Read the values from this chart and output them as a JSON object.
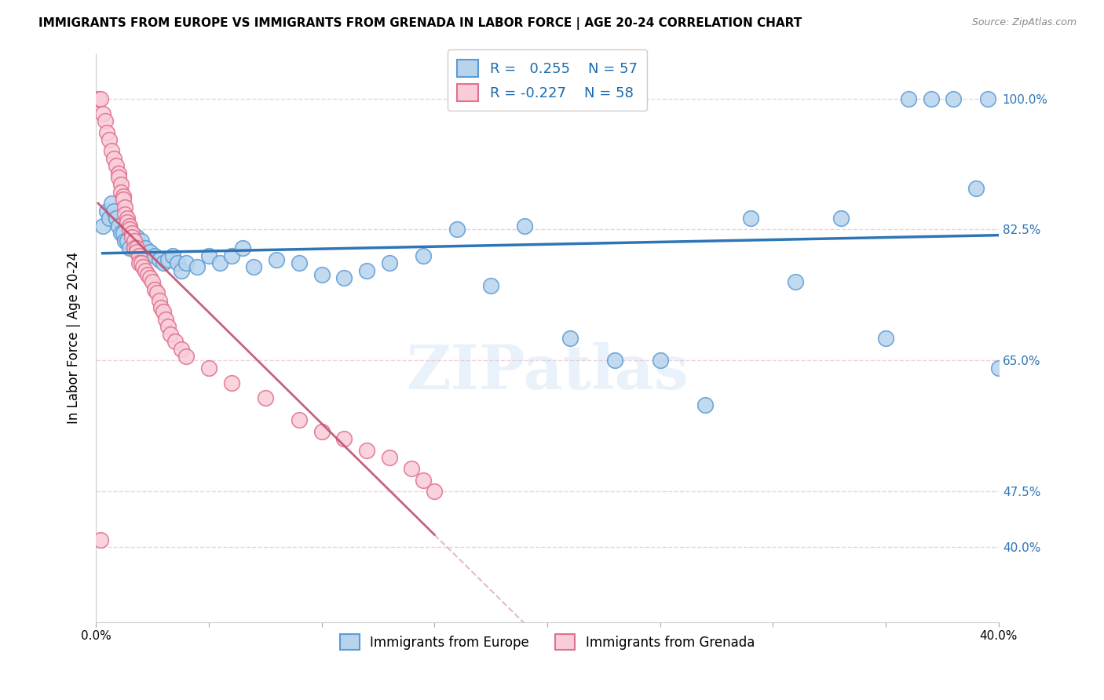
{
  "title": "IMMIGRANTS FROM EUROPE VS IMMIGRANTS FROM GRENADA IN LABOR FORCE | AGE 20-24 CORRELATION CHART",
  "source": "Source: ZipAtlas.com",
  "ylabel": "In Labor Force | Age 20-24",
  "xmin": 0.0,
  "xmax": 0.4,
  "ymin": 0.3,
  "ymax": 1.06,
  "blue_R": "0.255",
  "blue_N": "57",
  "pink_R": "-0.227",
  "pink_N": "58",
  "blue_color": "#b8d4ed",
  "blue_edge": "#5b9bd5",
  "pink_color": "#f9cdd8",
  "pink_edge": "#e07090",
  "blue_line_color": "#2e75b6",
  "pink_line_color": "#c05070",
  "watermark": "ZIPatlas",
  "blue_scatter_x": [
    0.003,
    0.005,
    0.006,
    0.007,
    0.008,
    0.009,
    0.01,
    0.011,
    0.012,
    0.013,
    0.014,
    0.015,
    0.016,
    0.017,
    0.018,
    0.019,
    0.02,
    0.022,
    0.024,
    0.026,
    0.028,
    0.03,
    0.032,
    0.034,
    0.036,
    0.038,
    0.04,
    0.045,
    0.05,
    0.055,
    0.06,
    0.065,
    0.07,
    0.08,
    0.09,
    0.1,
    0.11,
    0.12,
    0.13,
    0.145,
    0.16,
    0.175,
    0.19,
    0.21,
    0.23,
    0.25,
    0.27,
    0.29,
    0.31,
    0.33,
    0.35,
    0.36,
    0.37,
    0.38,
    0.39,
    0.395,
    0.4
  ],
  "blue_scatter_y": [
    0.83,
    0.85,
    0.84,
    0.86,
    0.85,
    0.84,
    0.83,
    0.82,
    0.82,
    0.81,
    0.81,
    0.8,
    0.82,
    0.8,
    0.815,
    0.8,
    0.81,
    0.8,
    0.795,
    0.79,
    0.785,
    0.78,
    0.785,
    0.79,
    0.78,
    0.77,
    0.78,
    0.775,
    0.79,
    0.78,
    0.79,
    0.8,
    0.775,
    0.785,
    0.78,
    0.765,
    0.76,
    0.77,
    0.78,
    0.79,
    0.825,
    0.75,
    0.83,
    0.68,
    0.65,
    0.65,
    0.59,
    0.84,
    0.755,
    0.84,
    0.68,
    1.0,
    1.0,
    1.0,
    0.88,
    1.0,
    0.64
  ],
  "pink_scatter_x": [
    0.001,
    0.002,
    0.003,
    0.004,
    0.005,
    0.006,
    0.007,
    0.008,
    0.009,
    0.01,
    0.01,
    0.011,
    0.011,
    0.012,
    0.012,
    0.013,
    0.013,
    0.014,
    0.014,
    0.015,
    0.015,
    0.016,
    0.016,
    0.017,
    0.017,
    0.018,
    0.018,
    0.019,
    0.019,
    0.02,
    0.021,
    0.022,
    0.023,
    0.024,
    0.025,
    0.026,
    0.027,
    0.028,
    0.029,
    0.03,
    0.031,
    0.032,
    0.033,
    0.035,
    0.038,
    0.04,
    0.05,
    0.06,
    0.075,
    0.09,
    0.1,
    0.11,
    0.12,
    0.13,
    0.14,
    0.145,
    0.15,
    0.002
  ],
  "pink_scatter_y": [
    1.0,
    1.0,
    0.98,
    0.97,
    0.955,
    0.945,
    0.93,
    0.92,
    0.91,
    0.9,
    0.895,
    0.885,
    0.875,
    0.87,
    0.865,
    0.855,
    0.845,
    0.84,
    0.835,
    0.83,
    0.825,
    0.82,
    0.815,
    0.81,
    0.8,
    0.8,
    0.795,
    0.79,
    0.78,
    0.78,
    0.775,
    0.77,
    0.765,
    0.76,
    0.755,
    0.745,
    0.74,
    0.73,
    0.72,
    0.715,
    0.705,
    0.695,
    0.685,
    0.675,
    0.665,
    0.655,
    0.64,
    0.62,
    0.6,
    0.57,
    0.555,
    0.545,
    0.53,
    0.52,
    0.505,
    0.49,
    0.475,
    0.41
  ],
  "grid_color": "#f0d0da",
  "background_color": "#ffffff",
  "right_ytick_color": "#2e75b6",
  "ytick_vals": [
    0.4,
    0.475,
    0.65,
    0.825,
    1.0
  ],
  "ytick_labels": [
    "40.0%",
    "47.5%",
    "65.0%",
    "82.5%",
    "100.0%"
  ],
  "xticks": [
    0.0,
    0.05,
    0.1,
    0.15,
    0.2,
    0.25,
    0.3,
    0.35,
    0.4
  ],
  "xtick_labels": [
    "0.0%",
    "",
    "",
    "",
    "",
    "",
    "",
    "",
    "40.0%"
  ]
}
